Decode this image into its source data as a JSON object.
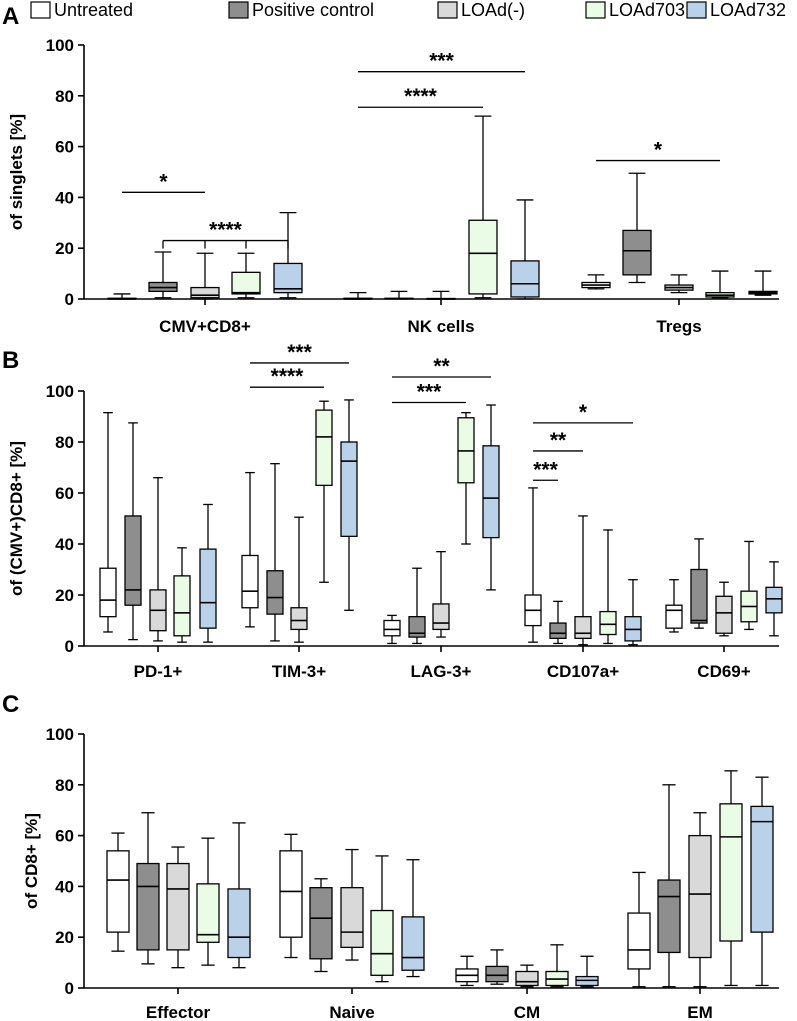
{
  "legend": {
    "series": [
      {
        "name": "Untreated",
        "color": "#ffffff"
      },
      {
        "name": "Positive control",
        "color": "#8e8e8e"
      },
      {
        "name": "LOAd(-)",
        "color": "#d9d9d9"
      },
      {
        "name": "LOAd703",
        "color": "#eafbe6"
      },
      {
        "name": "LOAd732",
        "color": "#b9d2ea"
      }
    ]
  },
  "chart_data": [
    {
      "type": "box",
      "panel": "A",
      "ylabel": "of singlets [%]",
      "ylim": [
        0,
        100
      ],
      "yticks": [
        "0",
        "20",
        "40",
        "60",
        "80",
        "100"
      ],
      "categories": [
        "CMV+CD8+",
        "NK cells",
        "Tregs"
      ],
      "boxes": [
        [
          [
            0,
            0,
            0,
            0.3,
            2
          ],
          [
            0.5,
            3,
            4.5,
            6.5,
            18.5
          ],
          [
            0,
            0.5,
            1.5,
            4.5,
            18
          ],
          [
            0.5,
            2,
            2.5,
            10.5,
            18
          ],
          [
            0.5,
            2.5,
            4,
            14,
            34
          ]
        ],
        [
          [
            0,
            0,
            0,
            0.3,
            2.5
          ],
          [
            0,
            0,
            0.1,
            0.3,
            3
          ],
          [
            0,
            0,
            0,
            0.2,
            3
          ],
          [
            0.5,
            2,
            18,
            31,
            72
          ],
          [
            0,
            0.8,
            6,
            15,
            39
          ]
        ],
        [
          [
            4,
            4.5,
            5.5,
            6.5,
            9.5
          ],
          [
            6.5,
            9.5,
            19,
            27,
            49.5
          ],
          [
            2.5,
            3.5,
            4.5,
            5.5,
            9.5
          ],
          [
            0.5,
            0.8,
            1.5,
            2.5,
            11
          ],
          [
            1.5,
            2,
            2.5,
            3,
            11
          ]
        ]
      ],
      "significance": [
        {
          "label": "*",
          "from": [
            0,
            0
          ],
          "to": [
            0,
            2
          ],
          "level": 42
        },
        {
          "label": "****",
          "from": [
            0,
            1
          ],
          "to": [
            0,
            4
          ],
          "level": 23,
          "drops": [
            1,
            2,
            3,
            4
          ]
        },
        {
          "label": "***",
          "from": [
            1,
            0
          ],
          "to": [
            1,
            4
          ],
          "level": 89.5
        },
        {
          "label": "****",
          "from": [
            1,
            0
          ],
          "to": [
            1,
            3
          ],
          "level": 75.5
        },
        {
          "label": "*",
          "from": [
            2,
            0
          ],
          "to": [
            2,
            3
          ],
          "level": 54.5
        }
      ]
    },
    {
      "type": "box",
      "panel": "B",
      "ylabel": "of (CMV+)CD8+ [%]",
      "ylim": [
        0,
        100
      ],
      "yticks": [
        "0",
        "20",
        "40",
        "60",
        "80",
        "100"
      ],
      "categories": [
        "PD-1+",
        "TIM-3+",
        "LAG-3+",
        "CD107a+",
        "CD69+"
      ],
      "boxes": [
        [
          [
            5.5,
            11.5,
            18,
            30.5,
            91.5
          ],
          [
            2.5,
            16,
            22,
            51,
            87.5
          ],
          [
            2,
            6,
            14,
            22,
            66
          ],
          [
            1.5,
            4,
            13,
            27.5,
            38.5
          ],
          [
            1.5,
            7,
            17,
            38,
            55.5
          ]
        ],
        [
          [
            7.5,
            15,
            21.5,
            35.5,
            68
          ],
          [
            2,
            12.5,
            19,
            29.5,
            71.5
          ],
          [
            1.5,
            6.5,
            10,
            15,
            50.5
          ],
          [
            25,
            63,
            82,
            92.5,
            96
          ],
          [
            14,
            43,
            72.5,
            80,
            96.5
          ]
        ],
        [
          [
            1,
            4,
            6.5,
            10,
            12
          ],
          [
            1,
            3.5,
            5,
            11.5,
            30.5
          ],
          [
            3.5,
            6.5,
            9,
            16.5,
            37
          ],
          [
            40,
            64,
            76.5,
            89.5,
            91.5
          ],
          [
            22,
            42.5,
            58,
            78.5,
            94.5
          ]
        ],
        [
          [
            1.5,
            8,
            14,
            20,
            62
          ],
          [
            1,
            3,
            5,
            9,
            17.5
          ],
          [
            0.5,
            3,
            5,
            11.5,
            51
          ],
          [
            1,
            4.5,
            8.5,
            13.5,
            45.5
          ],
          [
            0.5,
            2,
            6.5,
            11.5,
            26
          ]
        ],
        [
          [
            5.5,
            7,
            14,
            16,
            26
          ],
          [
            7,
            9,
            10,
            30,
            42
          ],
          [
            4,
            5,
            13,
            19.5,
            25
          ],
          [
            6.5,
            9.5,
            15.5,
            21.5,
            41
          ],
          [
            4,
            13,
            18.5,
            23,
            33
          ]
        ]
      ],
      "significance": [
        {
          "label": "***",
          "from": [
            1,
            0
          ],
          "to": [
            1,
            4
          ],
          "level": 111
        },
        {
          "label": "****",
          "from": [
            1,
            0
          ],
          "to": [
            1,
            3
          ],
          "level": 101.5
        },
        {
          "label": "**",
          "from": [
            2,
            0
          ],
          "to": [
            2,
            4
          ],
          "level": 105.5
        },
        {
          "label": "***",
          "from": [
            2,
            0
          ],
          "to": [
            2,
            3
          ],
          "level": 95.5
        },
        {
          "label": "*",
          "from": [
            3,
            0
          ],
          "to": [
            3,
            4
          ],
          "level": 87.5
        },
        {
          "label": "**",
          "from": [
            3,
            0
          ],
          "to": [
            3,
            2
          ],
          "level": 76.5
        },
        {
          "label": "***",
          "from": [
            3,
            0
          ],
          "to": [
            3,
            1
          ],
          "level": 65
        }
      ]
    },
    {
      "type": "box",
      "panel": "C",
      "ylabel": "of CD8+ [%]",
      "ylim": [
        0,
        100
      ],
      "yticks": [
        "0",
        "20",
        "40",
        "60",
        "80",
        "100"
      ],
      "categories": [
        "Effector",
        "Naive",
        "CM",
        "EM"
      ],
      "boxes": [
        [
          [
            14.5,
            22,
            42.5,
            54,
            61
          ],
          [
            9.5,
            15,
            40,
            49,
            69
          ],
          [
            8,
            15,
            39,
            49,
            55.5
          ],
          [
            9,
            18,
            21,
            41,
            59
          ],
          [
            8,
            12,
            20,
            39,
            65
          ]
        ],
        [
          [
            12,
            20,
            38,
            54,
            60.5
          ],
          [
            6.5,
            11.5,
            27.5,
            39.5,
            43
          ],
          [
            11,
            16,
            22,
            39.5,
            54.5
          ],
          [
            2.5,
            5,
            13.5,
            30.5,
            52
          ],
          [
            4.5,
            7,
            12,
            28,
            50.5
          ]
        ],
        [
          [
            1,
            2.5,
            5,
            7.5,
            12.5
          ],
          [
            1.5,
            2.5,
            5,
            8.5,
            15
          ],
          [
            0.5,
            1,
            2.5,
            6.5,
            9
          ],
          [
            0.5,
            1,
            3.5,
            6.5,
            17
          ],
          [
            0.5,
            1,
            3,
            4.5,
            12.5
          ]
        ],
        [
          [
            0.5,
            7.5,
            15,
            29.5,
            45.5
          ],
          [
            0.5,
            14,
            36,
            42.5,
            80
          ],
          [
            0.5,
            12,
            37,
            60,
            69
          ],
          [
            1,
            18.5,
            59.5,
            72.5,
            85.5
          ],
          [
            1,
            22,
            65.5,
            71.5,
            83
          ]
        ]
      ],
      "significance": []
    }
  ]
}
